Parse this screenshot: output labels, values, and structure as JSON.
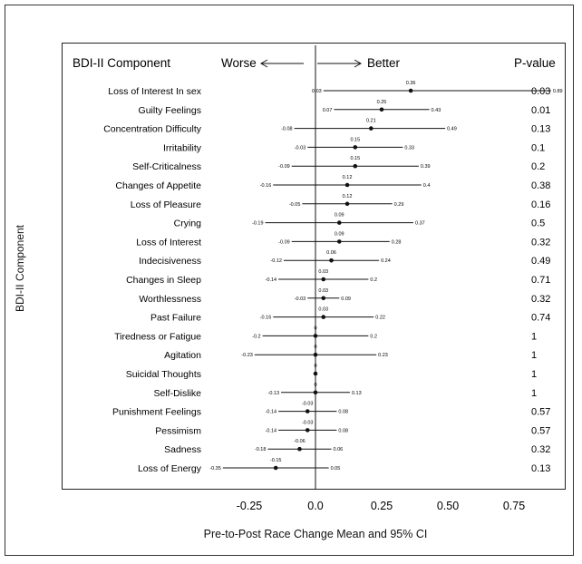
{
  "header": {
    "column_title": "BDI-II Component",
    "worse": "Worse",
    "better": "Better",
    "pvalue_title": "P-value"
  },
  "axes": {
    "ylabel": "BDI-II Component",
    "xlabel": "Pre-to-Post Race Change  Mean and 95% CI"
  },
  "chart_data": {
    "type": "forest",
    "title": "",
    "xlabel": "Pre-to-Post Race Change  Mean and 95% CI",
    "ylabel": "BDI-II Component",
    "xlim": [
      -0.38,
      0.88
    ],
    "xticks": [
      -0.25,
      0,
      0.25,
      0.5,
      0.75
    ],
    "xtick_labels": [
      "-0.25",
      "0.0",
      "0.25",
      "0.50",
      "0.75"
    ],
    "rows": [
      {
        "component": "Loss of Interest In sex",
        "mean": 0.36,
        "lo": 0.03,
        "hi": 0.89,
        "mean_label": "0.36",
        "lo_label": "0.03",
        "hi_label": "0.89",
        "p": "0.03"
      },
      {
        "component": "Guilty Feelings",
        "mean": 0.25,
        "lo": 0.07,
        "hi": 0.43,
        "mean_label": "0.25",
        "lo_label": "0.07",
        "hi_label": "0.43",
        "p": "0.01"
      },
      {
        "component": "Concentration Difficulty",
        "mean": 0.21,
        "lo": -0.08,
        "hi": 0.49,
        "mean_label": "0.21",
        "lo_label": "-0.08",
        "hi_label": "0.49",
        "p": "0.13"
      },
      {
        "component": "Irritability",
        "mean": 0.15,
        "lo": -0.03,
        "hi": 0.33,
        "mean_label": "0.15",
        "lo_label": "-0.03",
        "hi_label": "0.33",
        "p": "0.1"
      },
      {
        "component": "Self-Criticalness",
        "mean": 0.15,
        "lo": -0.09,
        "hi": 0.39,
        "mean_label": "0.15",
        "lo_label": "-0.09",
        "hi_label": "0.39",
        "p": "0.2"
      },
      {
        "component": "Changes of Appetite",
        "mean": 0.12,
        "lo": -0.16,
        "hi": 0.4,
        "mean_label": "0.12",
        "lo_label": "-0.16",
        "hi_label": "0.4",
        "p": "0.38"
      },
      {
        "component": "Loss of Pleasure",
        "mean": 0.12,
        "lo": -0.05,
        "hi": 0.29,
        "mean_label": "0.12",
        "lo_label": "-0.05",
        "hi_label": "0.29",
        "p": "0.16"
      },
      {
        "component": "Crying",
        "mean": 0.09,
        "lo": -0.19,
        "hi": 0.37,
        "mean_label": "0.09",
        "lo_label": "-0.19",
        "hi_label": "0.37",
        "p": "0.5"
      },
      {
        "component": "Loss of Interest",
        "mean": 0.09,
        "lo": -0.09,
        "hi": 0.28,
        "mean_label": "0.09",
        "lo_label": "-0.09",
        "hi_label": "0.28",
        "p": "0.32"
      },
      {
        "component": "Indecisiveness",
        "mean": 0.06,
        "lo": -0.12,
        "hi": 0.24,
        "mean_label": "0.06",
        "lo_label": "-0.12",
        "hi_label": "0.24",
        "p": "0.49"
      },
      {
        "component": "Changes in Sleep",
        "mean": 0.03,
        "lo": -0.14,
        "hi": 0.2,
        "mean_label": "0.03",
        "lo_label": "-0.14",
        "hi_label": "0.2",
        "p": "0.71"
      },
      {
        "component": "Worthlessness",
        "mean": 0.03,
        "lo": -0.03,
        "hi": 0.09,
        "mean_label": "0.03",
        "lo_label": "-0.03",
        "hi_label": "0.09",
        "p": "0.32"
      },
      {
        "component": "Past Failure",
        "mean": 0.03,
        "lo": -0.16,
        "hi": 0.22,
        "mean_label": "0.03",
        "lo_label": "-0.16",
        "hi_label": "0.22",
        "p": "0.74"
      },
      {
        "component": "Tiredness or Fatigue",
        "mean": 0,
        "lo": -0.2,
        "hi": 0.2,
        "mean_label": "0",
        "lo_label": "-0.2",
        "hi_label": "0.2",
        "p": "1"
      },
      {
        "component": "Agitation",
        "mean": 0,
        "lo": -0.23,
        "hi": 0.23,
        "mean_label": "0",
        "lo_label": "-0.23",
        "hi_label": "0.23",
        "p": "1"
      },
      {
        "component": "Suicidal Thoughts",
        "mean": 0,
        "lo": 0,
        "hi": 0,
        "mean_label": "0",
        "lo_label": "",
        "hi_label": "",
        "p": "1"
      },
      {
        "component": "Self-Dislike",
        "mean": 0,
        "lo": -0.13,
        "hi": 0.13,
        "mean_label": "0",
        "lo_label": "-0.13",
        "hi_label": "0.13",
        "p": "1"
      },
      {
        "component": "Punishment Feelings",
        "mean": -0.03,
        "lo": -0.14,
        "hi": 0.08,
        "mean_label": "-0.03",
        "lo_label": "-0.14",
        "hi_label": "0.08",
        "p": "0.57"
      },
      {
        "component": "Pessimism",
        "mean": -0.03,
        "lo": -0.14,
        "hi": 0.08,
        "mean_label": "-0.03",
        "lo_label": "-0.14",
        "hi_label": "0.08",
        "p": "0.57"
      },
      {
        "component": "Sadness",
        "mean": -0.06,
        "lo": -0.18,
        "hi": 0.06,
        "mean_label": "-0.06",
        "lo_label": "-0.18",
        "hi_label": "0.06",
        "p": "0.32"
      },
      {
        "component": "Loss of Energy",
        "mean": -0.15,
        "lo": -0.35,
        "hi": 0.05,
        "mean_label": "-0.15",
        "lo_label": "-0.35",
        "hi_label": "0.05",
        "p": "0.13"
      }
    ]
  }
}
